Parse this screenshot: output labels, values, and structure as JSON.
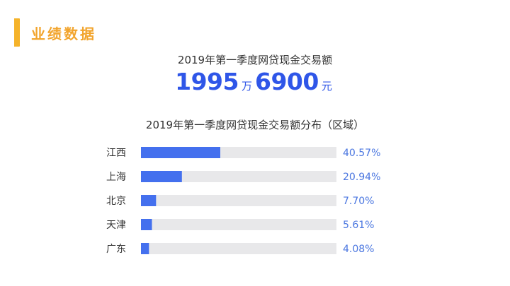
{
  "header": {
    "title": "业绩数据",
    "accent_color": "#f5b32a"
  },
  "headline": {
    "caption": "2019年第一季度网贷现金交易额",
    "amount_part1": "1995",
    "unit1": "万",
    "amount_part2": "6900",
    "unit2": "元"
  },
  "colors": {
    "bar_fill": "#4470ee",
    "bar_track": "#e8e8ea",
    "value_text": "#4a76e0",
    "label_text": "#333333"
  },
  "chart_data": {
    "type": "bar",
    "orientation": "horizontal",
    "title": "2019年第一季度网贷现金交易额分布（区域）",
    "categories": [
      "江西",
      "上海",
      "北京",
      "天津",
      "广东"
    ],
    "values": [
      40.57,
      20.94,
      7.7,
      5.61,
      4.08
    ],
    "value_labels": [
      "40.57%",
      "20.94%",
      "7.70%",
      "5.61%",
      "4.08%"
    ],
    "xlim": [
      0,
      100
    ],
    "grid": false,
    "legend": "none"
  }
}
